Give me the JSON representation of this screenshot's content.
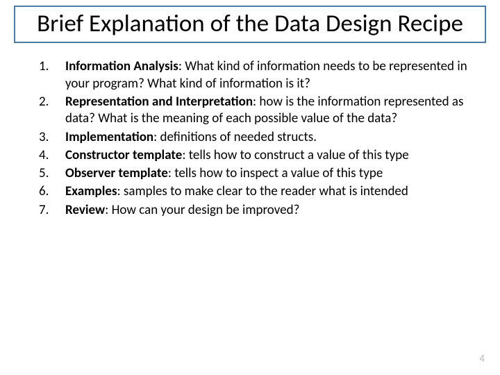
{
  "title": "Brief Explanation of the Data Design Recipe",
  "title_fontsize": 35,
  "title_border_color": "#4a7ca8",
  "body_fontsize": 19,
  "text_color": "#000000",
  "page_number_color": "#b9b9b9",
  "background_color": "#ffffff",
  "items": [
    {
      "num": "1.",
      "term": "Information Analysis",
      "desc": ": What kind of information needs to be represented in your program?  What kind of information is it?"
    },
    {
      "num": "2.",
      "term": "Representation and Interpretation",
      "desc": ": how is the information represented as data?  What is the meaning of each possible value of the data?"
    },
    {
      "num": "3.",
      "term": "Implementation",
      "desc": ": definitions of needed structs."
    },
    {
      "num": "4.",
      "term": "Constructor template",
      "desc": ": tells how to construct a value of this type"
    },
    {
      "num": "5.",
      "term": "Observer template",
      "desc": ": tells how to inspect a value of this type"
    },
    {
      "num": "6.",
      "term": "Examples",
      "desc": ": samples to make clear to the reader what is intended"
    },
    {
      "num": "7.",
      "term": "Review",
      "desc": ": How can your design be improved?"
    }
  ],
  "page_number": "4"
}
